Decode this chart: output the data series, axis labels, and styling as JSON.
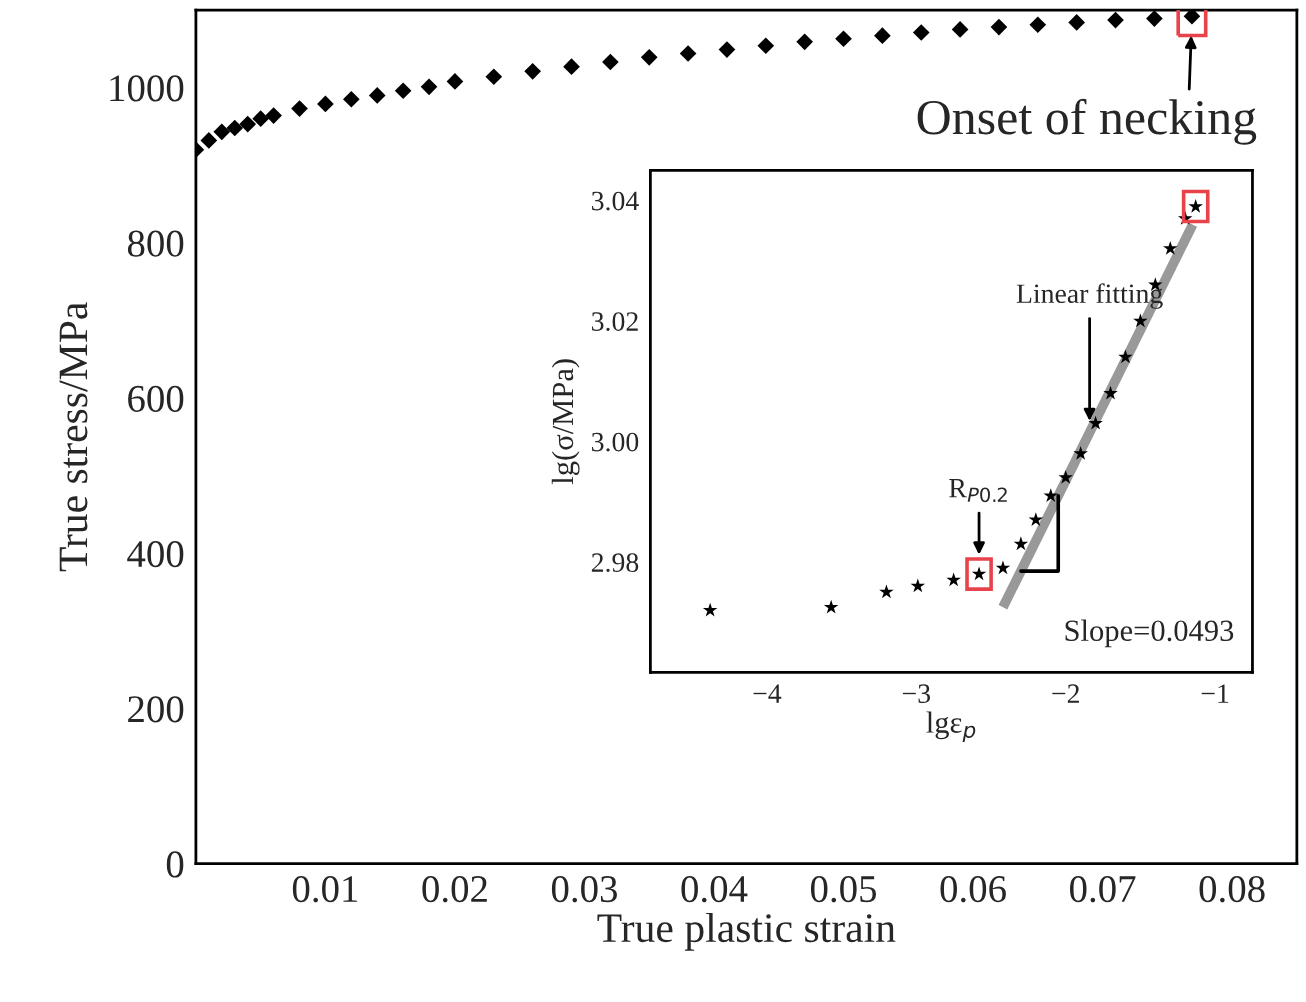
{
  "chart_data": [
    {
      "type": "scatter",
      "xlabel": "True plastic strain",
      "ylabel": "True stress/MPa",
      "marker": "diamond",
      "grid": false,
      "x": [
        0,
        0.001,
        0.002,
        0.003,
        0.004,
        0.005,
        0.006,
        0.008,
        0.01,
        0.012,
        0.014,
        0.016,
        0.018,
        0.02,
        0.023,
        0.026,
        0.029,
        0.032,
        0.035,
        0.038,
        0.041,
        0.044,
        0.047,
        0.05,
        0.053,
        0.056,
        0.059,
        0.062,
        0.065,
        0.068,
        0.071,
        0.074,
        0.0769
      ],
      "series": [
        {
          "color": "#000000",
          "values": [
            920,
            932,
            943,
            948,
            953,
            960,
            964,
            973,
            979,
            985,
            990,
            996,
            1001,
            1008,
            1014,
            1021,
            1027,
            1033,
            1039,
            1044,
            1049,
            1054,
            1059,
            1063,
            1067,
            1071,
            1075,
            1078,
            1081,
            1084,
            1087,
            1089,
            1092
          ]
        }
      ],
      "xlim": [
        0,
        0.085
      ],
      "ylim": [
        0,
        1100
      ],
      "xticks": [
        0.01,
        0.02,
        0.03,
        0.04,
        0.05,
        0.06,
        0.07,
        0.08
      ],
      "yticks": [
        0,
        200,
        400,
        600,
        800,
        1000
      ],
      "annotations": [
        {
          "text": "Onset of necking",
          "x": 0.0769,
          "y": 1092
        }
      ]
    },
    {
      "type": "scatter",
      "xlabel": "lgε$_{p}$",
      "ylabel": "lg(σ/MPa)",
      "marker": "star",
      "grid": false,
      "series": [
        {
          "color": "#000000",
          "x": [
            -4.38,
            -3.57,
            -3.2,
            -2.99,
            -2.75,
            -2.58,
            -2.42,
            -2.3,
            -2.2,
            -2.1,
            -2.0,
            -1.9,
            -1.8,
            -1.7,
            -1.6,
            -1.5,
            -1.4,
            -1.3,
            -1.2,
            -1.13
          ],
          "values": [
            2.972,
            2.9725,
            2.975,
            2.976,
            2.977,
            2.978,
            2.979,
            2.983,
            2.987,
            2.991,
            2.994,
            2.998,
            3.003,
            3.008,
            3.014,
            3.02,
            3.026,
            3.032,
            3.037,
            3.039
          ]
        },
        {
          "type": "line",
          "color": "#999999",
          "marker": "none",
          "x": [
            -2.42,
            -1.15
          ],
          "values": [
            2.9725,
            3.036
          ]
        }
      ],
      "xlim": [
        -4.78,
        -0.75
      ],
      "ylim": [
        2.9617,
        3.045
      ],
      "xticks": [
        {
          "value": -4,
          "label": "−4"
        },
        {
          "value": -3,
          "label": "−3"
        },
        {
          "value": -2,
          "label": "−2"
        },
        {
          "value": -1,
          "label": "−1"
        }
      ],
      "yticks": [
        {
          "value": 2.98,
          "label": "2.98"
        },
        {
          "value": 3.0,
          "label": "3.00"
        },
        {
          "value": 3.02,
          "label": "3.02"
        },
        {
          "value": 3.04,
          "label": "3.04"
        }
      ],
      "annotations": [
        {
          "text": "R$_{P0.2}$",
          "x": -2.58,
          "y": 2.978
        },
        {
          "text": "Linear fitting",
          "x": -1.84,
          "y": 3.0034
        },
        "Slope=0.0493"
      ]
    }
  ]
}
